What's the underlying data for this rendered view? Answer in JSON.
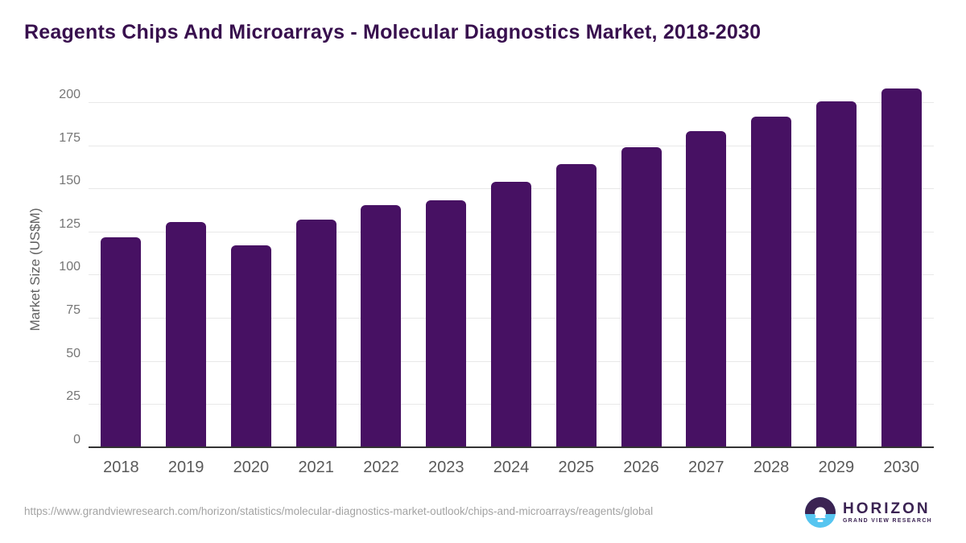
{
  "page": {
    "title": "Reagents Chips And Microarrays - Molecular Diagnostics Market, 2018-2030"
  },
  "chart_data": {
    "type": "bar",
    "title": "Reagents Chips And Microarrays - Molecular Diagnostics Market, 2018-2030",
    "xlabel": "",
    "ylabel": "Market Size (US$M)",
    "categories": [
      "2018",
      "2019",
      "2020",
      "2021",
      "2022",
      "2023",
      "2024",
      "2025",
      "2026",
      "2027",
      "2028",
      "2029",
      "2030"
    ],
    "values": [
      122.0,
      131.0,
      117.4,
      132.4,
      140.6,
      143.7,
      154.5,
      164.7,
      174.3,
      183.5,
      192.2,
      200.7,
      208.2
    ],
    "ylim": [
      0,
      213
    ],
    "yticks": [
      0,
      25,
      50,
      75,
      100,
      125,
      150,
      175,
      200
    ],
    "grid": true,
    "legend": false,
    "bar_color": "#471163"
  },
  "footer": {
    "source_url": "https://www.grandviewresearch.com/horizon/statistics/molecular-diagnostics-market-outlook/chips-and-microarrays/reagents/global",
    "logo": {
      "name": "HORIZON",
      "tagline": "GRAND VIEW RESEARCH"
    }
  },
  "colors": {
    "title": "#38104e",
    "bar": "#471163",
    "axis_line": "#333333",
    "gridline": "#e8e8e8",
    "ytick_label": "#757575",
    "xtick_label": "#595959",
    "url_text": "#a3a3a3",
    "logo_purple": "#3b2353",
    "logo_blue": "#56c5f0"
  }
}
